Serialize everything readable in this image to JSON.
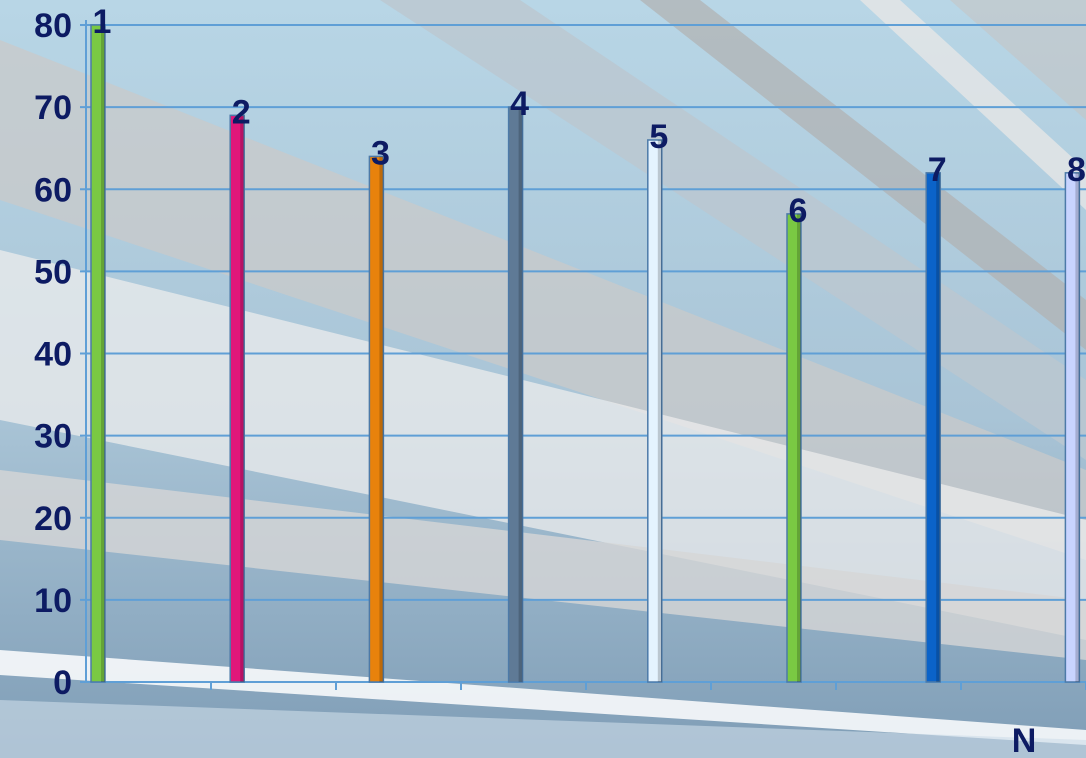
{
  "chart_data": {
    "type": "bar",
    "title": "",
    "xlabel": "N",
    "ylabel": "",
    "categories": [
      "1",
      "2",
      "3",
      "4",
      "5",
      "6",
      "7",
      "8"
    ],
    "values": [
      80,
      69,
      64,
      70,
      66,
      57,
      62,
      62
    ],
    "data_labels": [
      "1",
      "2",
      "3",
      "4",
      "5",
      "6",
      "7",
      "8"
    ],
    "bar_colors": [
      "#7ac943",
      "#e0177a",
      "#e8820c",
      "#5f7a96",
      "#e4f3ff",
      "#7ac943",
      "#0b63c9",
      "#c8d4ff"
    ],
    "ylim": [
      0,
      80
    ],
    "yticks": [
      0,
      10,
      20,
      30,
      40,
      50,
      60,
      70,
      80
    ],
    "grid": true,
    "legend": "none"
  }
}
